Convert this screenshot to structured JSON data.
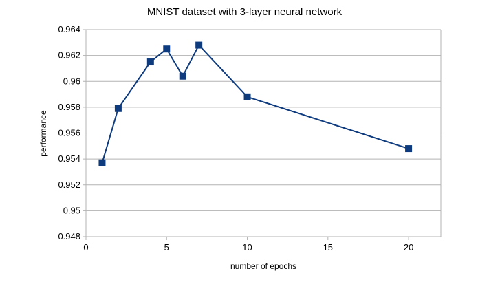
{
  "chart_data": {
    "type": "line",
    "title": "MNIST dataset with 3-layer neural network",
    "xlabel": "number of epochs",
    "ylabel": "performance",
    "xlim": [
      0,
      22
    ],
    "ylim": [
      0.948,
      0.964
    ],
    "xticks": [
      0,
      5,
      10,
      15,
      20
    ],
    "yticks": [
      0.948,
      0.95,
      0.952,
      0.954,
      0.956,
      0.958,
      0.96,
      0.962,
      0.964
    ],
    "ytick_labels": [
      "0.948",
      "0.95",
      "0.952",
      "0.954",
      "0.956",
      "0.958",
      "0.96",
      "0.962",
      "0.964"
    ],
    "grid": "horizontal",
    "legend": "none",
    "series": [
      {
        "x": [
          1,
          2,
          4,
          5,
          6,
          7,
          10,
          20
        ],
        "values": [
          0.9537,
          0.9579,
          0.9615,
          0.9625,
          0.9604,
          0.9628,
          0.9588,
          0.9548
        ],
        "color": "#0e3b7e",
        "marker": "square"
      }
    ]
  }
}
